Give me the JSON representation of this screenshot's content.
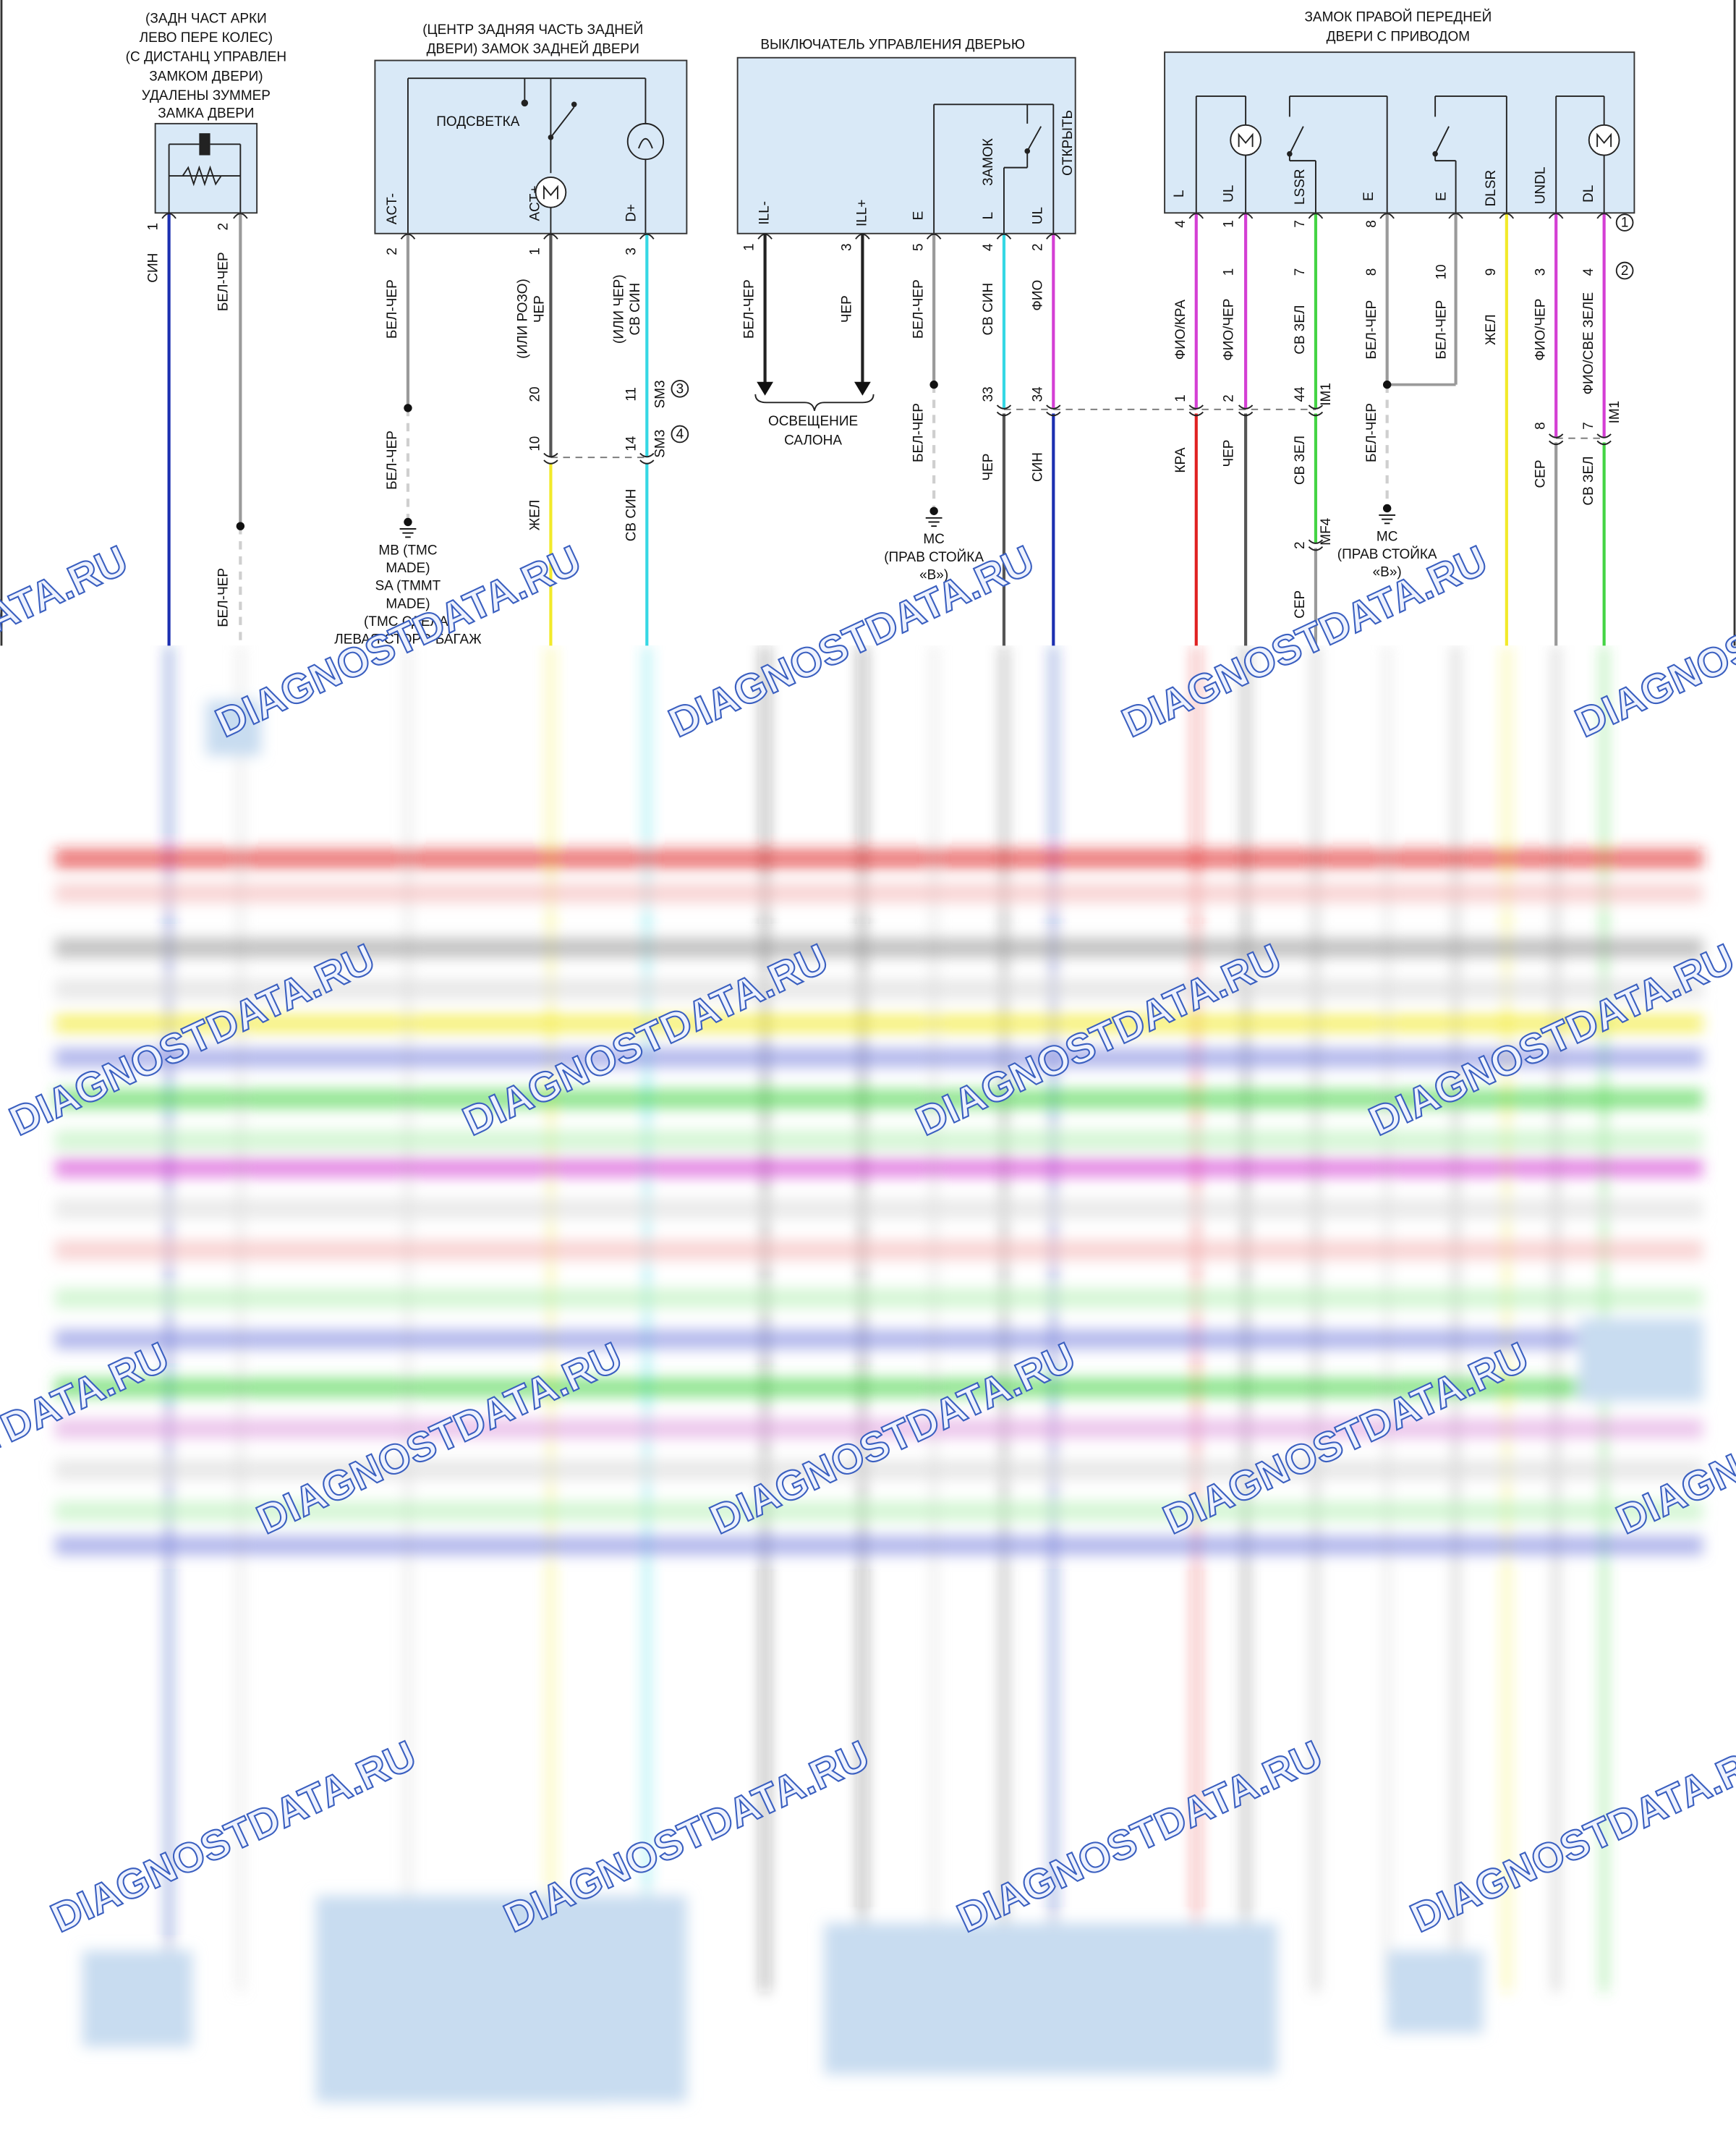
{
  "components": [
    {
      "title_lines": [
        "(ЗАДН ЧАСТ АРКИ",
        "ЛЕВО ПЕРЕ КОЛЕС)",
        "(С ДИСТАНЦ УПРАВЛЕН",
        "ЗАМКОМ ДВЕРИ)",
        "УДАЛЕНЫ ЗУММЕР",
        "ЗАМКА ДВЕРИ"
      ],
      "pin_names": [],
      "inner_labels": []
    },
    {
      "title_lines": [
        "(ЦЕНТР ЗАДНЯЯ ЧАСТЬ ЗАДНЕЙ",
        "ДВЕРИ) ЗАМОК ЗАДНЕЙ ДВЕРИ"
      ],
      "pin_names": [
        "ACT-",
        "ACT+",
        "D+"
      ],
      "inner_labels": [
        "ПОДСВЕТКА"
      ]
    },
    {
      "title_lines": [
        "ВЫКЛЮЧАТЕЛЬ УПРАВЛЕНИЯ ДВЕРЬЮ"
      ],
      "pin_names": [
        "ILL-",
        "ILL+",
        "E",
        "L",
        "UL"
      ],
      "inner_labels": [
        "ЗАМОК",
        "ОТКРЫТЬ"
      ]
    },
    {
      "title_lines": [
        "ЗАМОК ПРАВОЙ ПЕРЕДНЕЙ",
        "ДВЕРИ С ПРИВОДОМ"
      ],
      "pin_names": [
        "L",
        "UL",
        "LSSR",
        "E",
        "E",
        "DLSR",
        "UNDL",
        "DL"
      ],
      "inner_labels": []
    }
  ],
  "wires": [
    {
      "labels": [
        "1",
        "СИН"
      ]
    },
    {
      "labels": [
        "2",
        "БЕЛ-ЧЕР",
        "БЕЛ-ЧЕР"
      ]
    },
    {
      "labels": [
        "2",
        "БЕЛ-ЧЕР",
        "БЕЛ-ЧЕР"
      ]
    },
    {
      "labels": [
        "1",
        "ЧЕР",
        "(ИЛИ РОЗО)",
        "20",
        "10",
        "ЖЕЛ"
      ]
    },
    {
      "labels": [
        "3",
        "СВ СИН",
        "(ИЛИ ЧЕР)",
        "11",
        "SM3",
        "14",
        "SM3",
        "СВ СИН"
      ]
    },
    {
      "labels": [
        "1",
        "БЕЛ-ЧЕР"
      ]
    },
    {
      "labels": [
        "3",
        "ЧЕР"
      ]
    },
    {
      "labels": [
        "5",
        "БЕЛ-ЧЕР",
        "БЕЛ-ЧЕР"
      ]
    },
    {
      "labels": [
        "4",
        "СВ СИН",
        "33",
        "ЧЕР"
      ]
    },
    {
      "labels": [
        "2",
        "ФИО",
        "34",
        "СИН"
      ]
    },
    {
      "labels": [
        "4",
        "ФИО/КРА",
        "1",
        "КРА"
      ]
    },
    {
      "labels": [
        "1",
        "1",
        "ФИО/ЧЕР",
        "2",
        "ЧЕР"
      ]
    },
    {
      "labels": [
        "7",
        "7",
        "СВ ЗЕЛ",
        "44",
        "IM1",
        "СВ ЗЕЛ",
        "2",
        "MF4",
        "СЕР"
      ]
    },
    {
      "labels": [
        "8",
        "8",
        "БЕЛ-ЧЕР",
        "БЕЛ-ЧЕР"
      ]
    },
    {
      "labels": [
        "10",
        "БЕЛ-ЧЕР"
      ]
    },
    {
      "labels": [
        "9",
        "ЖЕЛ"
      ]
    },
    {
      "labels": [
        "3",
        "ФИО/ЧЕР",
        "8",
        "СЕР"
      ]
    },
    {
      "labels": [
        "4",
        "ФИО/СВЕ ЗЕЛЕ",
        "7",
        "IM1",
        "СВ ЗЕЛ"
      ]
    }
  ],
  "grounds": [
    {
      "lines": [
        "MB (TMC",
        "MADE)",
        "SA (TMMT",
        "MADE)",
        "(TMC СДЕЛА:",
        "ЛЕВАЯ СТОРО БАГАЖ"
      ]
    },
    {
      "lines": [
        "MC",
        "(ПРАВ СТОЙКА",
        "«B»)"
      ]
    },
    {
      "lines": [
        "MC",
        "(ПРАВ СТОЙКА",
        "«B»)"
      ]
    }
  ],
  "lighting_label": [
    "ОСВЕЩЕНИЕ",
    "САЛОНА"
  ],
  "markers": [
    "1",
    "2",
    "3",
    "4"
  ],
  "watermark": "DIAGNOSTDATA.RU"
}
